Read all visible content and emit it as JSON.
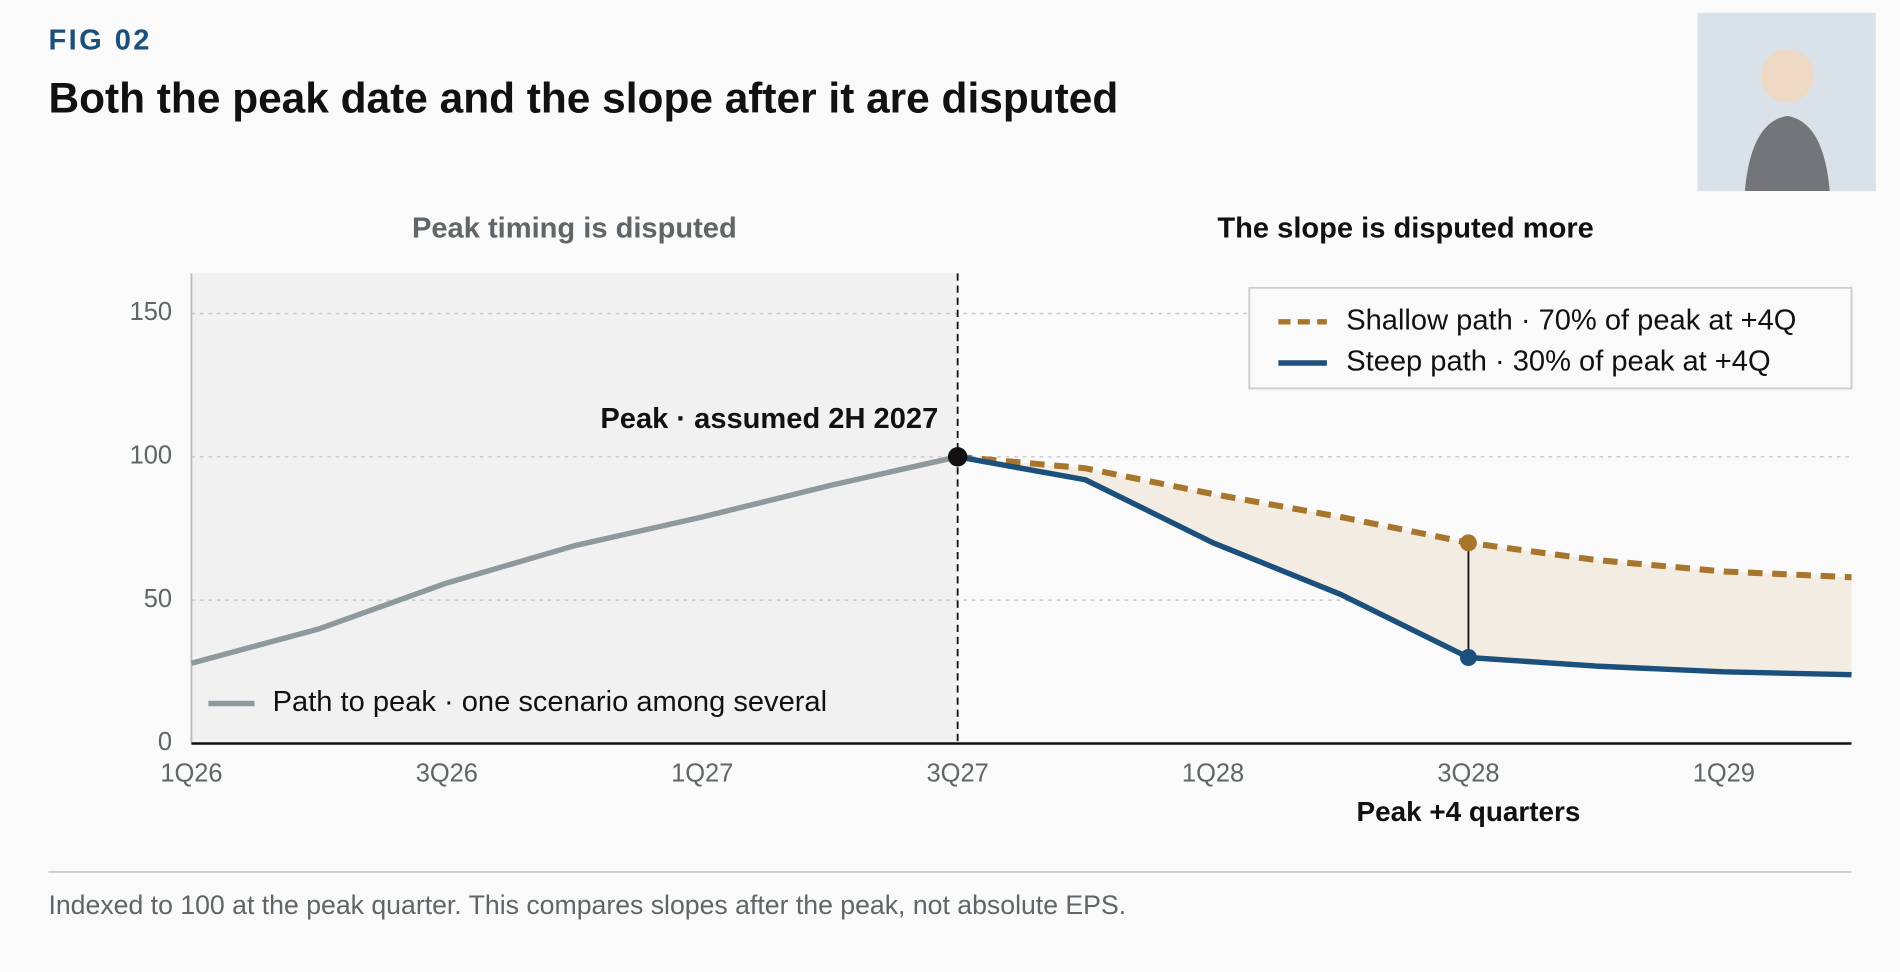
{
  "chart_data": {
    "type": "line",
    "kicker": "FIG 02",
    "title": "Both the peak date and the slope after it are disputed",
    "panel_titles": [
      "Peak timing is disputed",
      "The slope is disputed more"
    ],
    "categories": [
      "1Q26",
      null,
      "3Q26",
      null,
      "1Q27",
      null,
      "3Q27",
      null,
      "1Q28",
      null,
      "3Q28",
      null,
      "1Q29",
      null
    ],
    "series": [
      {
        "name": "Path to peak · one scenario among several",
        "color": "#8d999c",
        "values": [
          28,
          40,
          56,
          69,
          79,
          90,
          100,
          null,
          null,
          null,
          null,
          null,
          null,
          null
        ]
      },
      {
        "name": "Shallow path · 70% of peak at +4Q",
        "color": "#a8752c",
        "values": [
          null,
          null,
          null,
          null,
          null,
          null,
          100,
          96,
          87,
          79,
          70,
          64,
          60,
          58
        ]
      },
      {
        "name": "Steep path · 30% of peak at +4Q",
        "color": "#1b4f7c",
        "values": [
          null,
          null,
          null,
          null,
          null,
          null,
          100,
          92,
          70,
          52,
          30,
          27,
          25,
          24
        ]
      }
    ],
    "ylim": [
      0,
      164
    ],
    "yticks": [
      0,
      50,
      100,
      150
    ],
    "grid": true,
    "legend": "top-right",
    "highlight": "3Q28",
    "annotations": {
      "peak": "Peak · assumed 2H 2027",
      "after": "Peak +4 quarters"
    },
    "note": "Indexed to 100 at the peak quarter. This compares slopes after the peak, not absolute EPS."
  }
}
